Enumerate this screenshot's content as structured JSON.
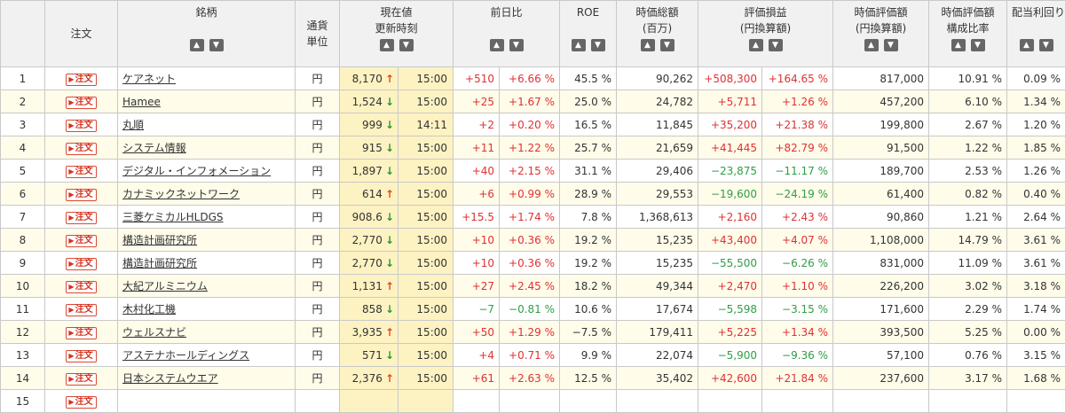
{
  "columns": {
    "no": "",
    "order": "注文",
    "name": "銘柄",
    "currency_1": "通貨",
    "currency_2": "単位",
    "price_1": "現在値",
    "price_2": "更新時刻",
    "change": "前日比",
    "roe": "ROE",
    "mcap_1": "時価総額",
    "mcap_2": "(百万)",
    "pl_1": "評価損益",
    "pl_2": "(円換算額)",
    "value_1": "時価評価額",
    "value_2": "(円換算額)",
    "ratio_1": "時価評価額",
    "ratio_2": "構成比率",
    "yield": "配当利回り"
  },
  "sort": {
    "asc": "▲",
    "desc": "▼"
  },
  "order_label": "注文",
  "rows": [
    {
      "no": "1",
      "name": "ケアネット",
      "cur": "円",
      "price": "8,170",
      "dir": "up",
      "time": "15:00",
      "chg": "+510",
      "chg_pct": "+6.66 %",
      "roe": "45.5 %",
      "mcap": "90,262",
      "pl": "+508,300",
      "pl_pct": "+164.65 %",
      "value": "817,000",
      "ratio": "10.91 %",
      "yield": "0.09 %"
    },
    {
      "no": "2",
      "name": "Hamee",
      "cur": "円",
      "price": "1,524",
      "dir": "down",
      "time": "15:00",
      "chg": "+25",
      "chg_pct": "+1.67 %",
      "roe": "25.0 %",
      "mcap": "24,782",
      "pl": "+5,711",
      "pl_pct": "+1.26 %",
      "value": "457,200",
      "ratio": "6.10 %",
      "yield": "1.34 %"
    },
    {
      "no": "3",
      "name": "丸順",
      "cur": "円",
      "price": "999",
      "dir": "down",
      "time": "14:11",
      "chg": "+2",
      "chg_pct": "+0.20 %",
      "roe": "16.5 %",
      "mcap": "11,845",
      "pl": "+35,200",
      "pl_pct": "+21.38 %",
      "value": "199,800",
      "ratio": "2.67 %",
      "yield": "1.20 %"
    },
    {
      "no": "4",
      "name": "システム情報",
      "cur": "円",
      "price": "915",
      "dir": "down",
      "time": "15:00",
      "chg": "+11",
      "chg_pct": "+1.22 %",
      "roe": "25.7 %",
      "mcap": "21,659",
      "pl": "+41,445",
      "pl_pct": "+82.79 %",
      "value": "91,500",
      "ratio": "1.22 %",
      "yield": "1.85 %"
    },
    {
      "no": "5",
      "name": "デジタル・インフォメーション",
      "cur": "円",
      "price": "1,897",
      "dir": "down",
      "time": "15:00",
      "chg": "+40",
      "chg_pct": "+2.15 %",
      "roe": "31.1 %",
      "mcap": "29,406",
      "pl": "−23,875",
      "pl_pct": "−11.17 %",
      "value": "189,700",
      "ratio": "2.53 %",
      "yield": "1.26 %"
    },
    {
      "no": "6",
      "name": "カナミックネットワーク",
      "cur": "円",
      "price": "614",
      "dir": "up",
      "time": "15:00",
      "chg": "+6",
      "chg_pct": "+0.99 %",
      "roe": "28.9 %",
      "mcap": "29,553",
      "pl": "−19,600",
      "pl_pct": "−24.19 %",
      "value": "61,400",
      "ratio": "0.82 %",
      "yield": "0.40 %"
    },
    {
      "no": "7",
      "name": "三菱ケミカルHLDGS",
      "cur": "円",
      "price": "908.6",
      "dir": "down",
      "time": "15:00",
      "chg": "+15.5",
      "chg_pct": "+1.74 %",
      "roe": "7.8 %",
      "mcap": "1,368,613",
      "pl": "+2,160",
      "pl_pct": "+2.43 %",
      "value": "90,860",
      "ratio": "1.21 %",
      "yield": "2.64 %"
    },
    {
      "no": "8",
      "name": "構造計画研究所",
      "cur": "円",
      "price": "2,770",
      "dir": "down",
      "time": "15:00",
      "chg": "+10",
      "chg_pct": "+0.36 %",
      "roe": "19.2 %",
      "mcap": "15,235",
      "pl": "+43,400",
      "pl_pct": "+4.07 %",
      "value": "1,108,000",
      "ratio": "14.79 %",
      "yield": "3.61 %"
    },
    {
      "no": "9",
      "name": "構造計画研究所",
      "cur": "円",
      "price": "2,770",
      "dir": "down",
      "time": "15:00",
      "chg": "+10",
      "chg_pct": "+0.36 %",
      "roe": "19.2 %",
      "mcap": "15,235",
      "pl": "−55,500",
      "pl_pct": "−6.26 %",
      "value": "831,000",
      "ratio": "11.09 %",
      "yield": "3.61 %"
    },
    {
      "no": "10",
      "name": "大紀アルミニウム",
      "cur": "円",
      "price": "1,131",
      "dir": "up",
      "time": "15:00",
      "chg": "+27",
      "chg_pct": "+2.45 %",
      "roe": "18.2 %",
      "mcap": "49,344",
      "pl": "+2,470",
      "pl_pct": "+1.10 %",
      "value": "226,200",
      "ratio": "3.02 %",
      "yield": "3.18 %"
    },
    {
      "no": "11",
      "name": "木村化工機",
      "cur": "円",
      "price": "858",
      "dir": "down",
      "time": "15:00",
      "chg": "−7",
      "chg_pct": "−0.81 %",
      "roe": "10.6 %",
      "mcap": "17,674",
      "pl": "−5,598",
      "pl_pct": "−3.15 %",
      "value": "171,600",
      "ratio": "2.29 %",
      "yield": "1.74 %"
    },
    {
      "no": "12",
      "name": "ウェルスナビ",
      "cur": "円",
      "price": "3,935",
      "dir": "up",
      "time": "15:00",
      "chg": "+50",
      "chg_pct": "+1.29 %",
      "roe": "−7.5 %",
      "mcap": "179,411",
      "pl": "+5,225",
      "pl_pct": "+1.34 %",
      "value": "393,500",
      "ratio": "5.25 %",
      "yield": "0.00 %"
    },
    {
      "no": "13",
      "name": "アステナホールディングス",
      "cur": "円",
      "price": "571",
      "dir": "down",
      "time": "15:00",
      "chg": "+4",
      "chg_pct": "+0.71 %",
      "roe": "9.9 %",
      "mcap": "22,074",
      "pl": "−5,900",
      "pl_pct": "−9.36 %",
      "value": "57,100",
      "ratio": "0.76 %",
      "yield": "3.15 %"
    },
    {
      "no": "14",
      "name": "日本システムウエア",
      "cur": "円",
      "price": "2,376",
      "dir": "up",
      "time": "15:00",
      "chg": "+61",
      "chg_pct": "+2.63 %",
      "roe": "12.5 %",
      "mcap": "35,402",
      "pl": "+42,600",
      "pl_pct": "+21.84 %",
      "value": "237,600",
      "ratio": "3.17 %",
      "yield": "1.68 %"
    },
    {
      "no": "15",
      "name": "",
      "cur": "",
      "price": "",
      "dir": "",
      "time": "",
      "chg": "",
      "chg_pct": "",
      "roe": "",
      "mcap": "",
      "pl": "",
      "pl_pct": "",
      "value": "",
      "ratio": "",
      "yield": ""
    }
  ],
  "colors": {
    "up": "#e24a1c",
    "down": "#2a9a2a",
    "positive": "#e03131",
    "negative": "#2f9e44",
    "stripe": "#fffcea",
    "price_bg": "#fdf2c2"
  },
  "icons": {
    "up": "arrow-up-icon",
    "down": "arrow-down-icon",
    "order": "play-icon"
  }
}
